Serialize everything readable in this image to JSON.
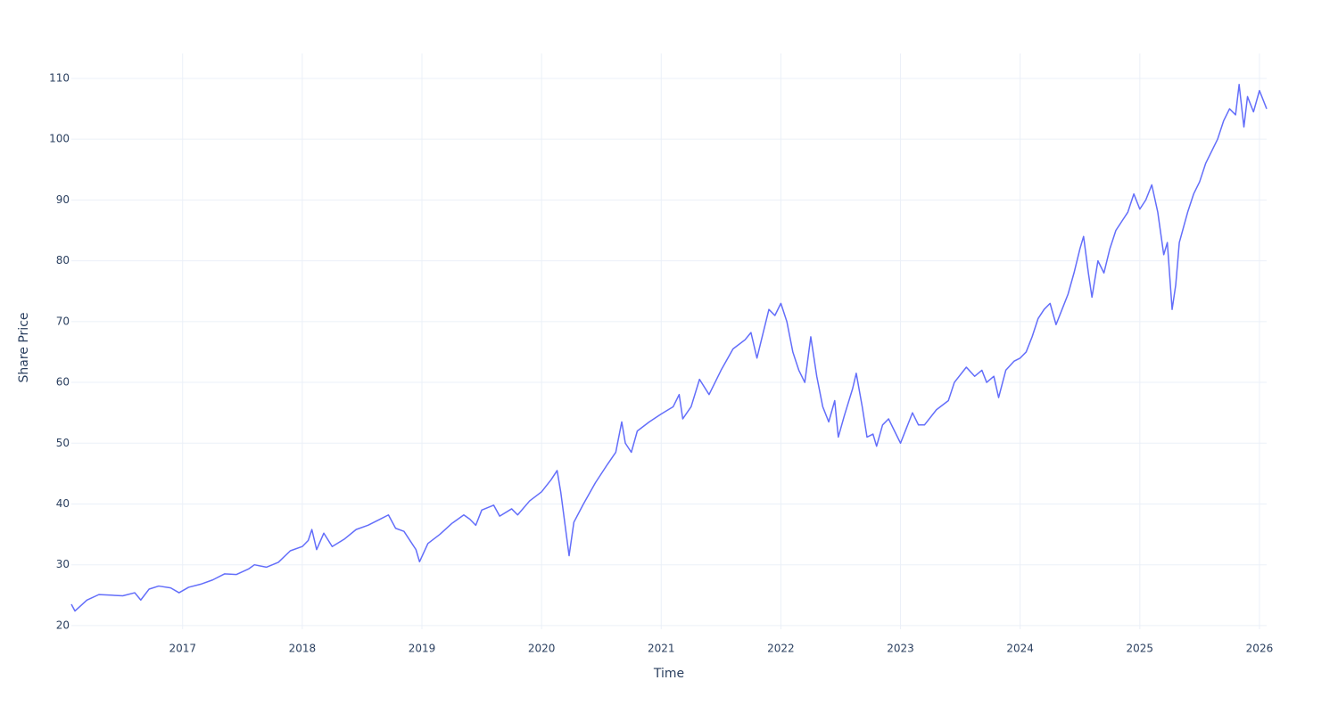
{
  "chart_data": {
    "type": "line",
    "x_label": "Time",
    "y_label": "Share Price",
    "color": "#636efa",
    "grid": true,
    "xlim": [
      2016.07,
      2026.06
    ],
    "xticks": [
      2017,
      2018,
      2019,
      2020,
      2021,
      2022,
      2023,
      2024,
      2025,
      2026
    ],
    "ylim": [
      19.4,
      114.1
    ],
    "yticks": [
      20,
      30,
      40,
      50,
      60,
      70,
      80,
      90,
      100,
      110
    ],
    "x": [
      2016.07,
      2016.1,
      2016.2,
      2016.3,
      2016.4,
      2016.5,
      2016.6,
      2016.65,
      2016.72,
      2016.8,
      2016.9,
      2016.97,
      2017.05,
      2017.15,
      2017.25,
      2017.35,
      2017.45,
      2017.55,
      2017.6,
      2017.7,
      2017.8,
      2017.9,
      2018.0,
      2018.05,
      2018.08,
      2018.12,
      2018.18,
      2018.25,
      2018.35,
      2018.45,
      2018.55,
      2018.65,
      2018.72,
      2018.78,
      2018.85,
      2018.9,
      2018.95,
      2018.98,
      2019.05,
      2019.15,
      2019.25,
      2019.35,
      2019.4,
      2019.45,
      2019.5,
      2019.6,
      2019.65,
      2019.75,
      2019.8,
      2019.9,
      2020.0,
      2020.08,
      2020.13,
      2020.16,
      2020.2,
      2020.23,
      2020.27,
      2020.35,
      2020.45,
      2020.55,
      2020.62,
      2020.67,
      2020.7,
      2020.75,
      2020.8,
      2020.9,
      2021.0,
      2021.1,
      2021.15,
      2021.18,
      2021.25,
      2021.32,
      2021.4,
      2021.5,
      2021.6,
      2021.7,
      2021.75,
      2021.8,
      2021.85,
      2021.9,
      2021.95,
      2022.0,
      2022.05,
      2022.1,
      2022.15,
      2022.2,
      2022.25,
      2022.3,
      2022.35,
      2022.4,
      2022.45,
      2022.48,
      2022.53,
      2022.6,
      2022.63,
      2022.68,
      2022.72,
      2022.77,
      2022.8,
      2022.85,
      2022.9,
      2022.95,
      2023.0,
      2023.05,
      2023.1,
      2023.15,
      2023.2,
      2023.3,
      2023.4,
      2023.45,
      2023.55,
      2023.62,
      2023.68,
      2023.72,
      2023.78,
      2023.82,
      2023.88,
      2023.95,
      2024.0,
      2024.05,
      2024.1,
      2024.15,
      2024.2,
      2024.25,
      2024.3,
      2024.35,
      2024.4,
      2024.45,
      2024.5,
      2024.53,
      2024.57,
      2024.6,
      2024.65,
      2024.7,
      2024.75,
      2024.8,
      2024.85,
      2024.9,
      2024.95,
      2025.0,
      2025.05,
      2025.1,
      2025.15,
      2025.2,
      2025.23,
      2025.27,
      2025.3,
      2025.33,
      2025.4,
      2025.45,
      2025.5,
      2025.55,
      2025.6,
      2025.65,
      2025.7,
      2025.75,
      2025.8,
      2025.83,
      2025.87,
      2025.9,
      2025.95,
      2026.0,
      2026.06
    ],
    "values": [
      23.5,
      22.4,
      24.2,
      25.1,
      25.0,
      24.9,
      25.4,
      24.2,
      26.0,
      26.5,
      26.2,
      25.4,
      26.3,
      26.8,
      27.5,
      28.5,
      28.4,
      29.3,
      30.0,
      29.6,
      30.4,
      32.3,
      33.0,
      34.0,
      35.8,
      32.5,
      35.2,
      33.0,
      34.2,
      35.8,
      36.5,
      37.5,
      38.2,
      36.0,
      35.5,
      34.0,
      32.5,
      30.5,
      33.5,
      35.0,
      36.8,
      38.2,
      37.5,
      36.5,
      39.0,
      39.8,
      38.0,
      39.2,
      38.2,
      40.5,
      42.0,
      44.0,
      45.5,
      42.0,
      36.0,
      31.5,
      37.0,
      40.0,
      43.5,
      46.5,
      48.5,
      53.5,
      50.0,
      48.5,
      52.0,
      53.5,
      54.8,
      56.0,
      58.0,
      54.0,
      56.0,
      60.5,
      58.0,
      62.0,
      65.5,
      67.0,
      68.2,
      64.0,
      68.0,
      72.0,
      71.0,
      73.0,
      70.0,
      65.0,
      62.0,
      60.0,
      67.5,
      61.0,
      56.0,
      53.5,
      57.0,
      51.0,
      54.5,
      59.0,
      61.5,
      56.0,
      51.0,
      51.5,
      49.5,
      53.0,
      54.0,
      52.0,
      50.0,
      52.5,
      55.0,
      53.0,
      53.0,
      55.5,
      57.0,
      60.0,
      62.5,
      61.0,
      62.0,
      60.0,
      61.0,
      57.5,
      62.0,
      63.5,
      64.0,
      65.0,
      67.5,
      70.5,
      72.0,
      73.0,
      69.5,
      72.0,
      74.5,
      78.0,
      82.0,
      84.0,
      78.0,
      74.0,
      80.0,
      78.0,
      82.0,
      85.0,
      86.5,
      88.0,
      91.0,
      88.5,
      90.0,
      92.5,
      88.0,
      81.0,
      83.0,
      72.0,
      76.0,
      83.0,
      88.0,
      91.0,
      93.0,
      96.0,
      98.0,
      100.0,
      103.0,
      105.0,
      104.0,
      109.0,
      102.0,
      107.0,
      104.5,
      108.0,
      105.0
    ]
  }
}
